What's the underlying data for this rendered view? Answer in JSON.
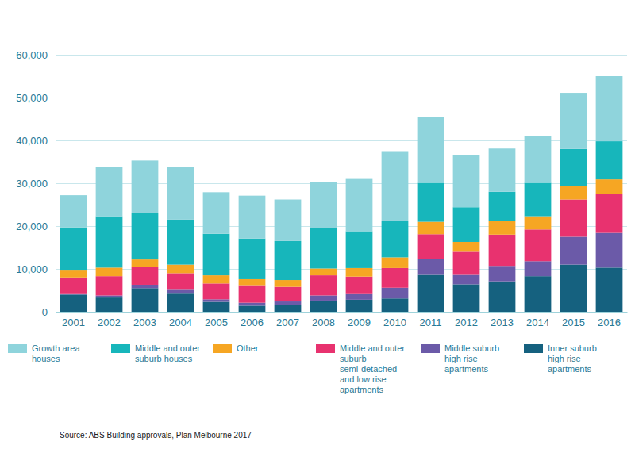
{
  "chart_data": {
    "type": "bar",
    "stacked": true,
    "grid": true,
    "legend": "bottom",
    "source": "Source: ABS Building approvals, Plan Melbourne 2017",
    "categories": [
      "2001",
      "2002",
      "2003",
      "2004",
      "2005",
      "2006",
      "2007",
      "2008",
      "2009",
      "2010",
      "2011",
      "2012",
      "2013",
      "2014",
      "2015",
      "2016"
    ],
    "ylim": [
      0,
      60000
    ],
    "yticks": [
      0,
      {
        "value": 10000,
        "label": "10,000"
      },
      {
        "value": 20000,
        "label": "20,000"
      },
      {
        "value": 30000,
        "label": "30,000"
      },
      {
        "value": 40000,
        "label": "40,000"
      },
      {
        "value": 50000,
        "label": "50,000"
      },
      {
        "value": 60000,
        "label": "60,000"
      }
    ],
    "series": [
      {
        "name": "Growth area houses",
        "color": "#8fd4dc",
        "values": [
          7500,
          11500,
          12200,
          12200,
          9700,
          10000,
          9700,
          10800,
          12200,
          16200,
          15400,
          12100,
          10100,
          11000,
          13100,
          15200
        ]
      },
      {
        "name": "Middle and outer suburb houses",
        "color": "#17b6bb",
        "values": [
          9900,
          12000,
          10900,
          10500,
          9700,
          9500,
          9100,
          9400,
          8600,
          8600,
          9100,
          8100,
          6800,
          7800,
          8600,
          8900
        ]
      },
      {
        "name": "Other",
        "color": "#f6a623",
        "values": [
          1800,
          2000,
          1700,
          2000,
          1900,
          1400,
          1600,
          1600,
          2000,
          2500,
          2900,
          2300,
          3200,
          3100,
          3200,
          3400
        ]
      },
      {
        "name": "Middle and outer suburb semi-detached and low rise apartments",
        "color": "#e8326f",
        "values": [
          3700,
          4500,
          4200,
          3700,
          3700,
          4100,
          3400,
          4700,
          3900,
          4600,
          5800,
          5400,
          7300,
          7400,
          8700,
          9100
        ]
      },
      {
        "name": "Middle suburb high rise apartments",
        "color": "#6b5aa8",
        "values": [
          300,
          300,
          800,
          900,
          600,
          700,
          800,
          1200,
          1500,
          2500,
          3700,
          2200,
          3600,
          3500,
          6500,
          8100
        ]
      },
      {
        "name": "Inner suburb high rise apartments",
        "color": "#15617f",
        "values": [
          4000,
          3500,
          5500,
          4400,
          2300,
          1400,
          1600,
          2600,
          2800,
          3100,
          8600,
          6400,
          7100,
          8300,
          11000,
          10300
        ]
      }
    ]
  }
}
